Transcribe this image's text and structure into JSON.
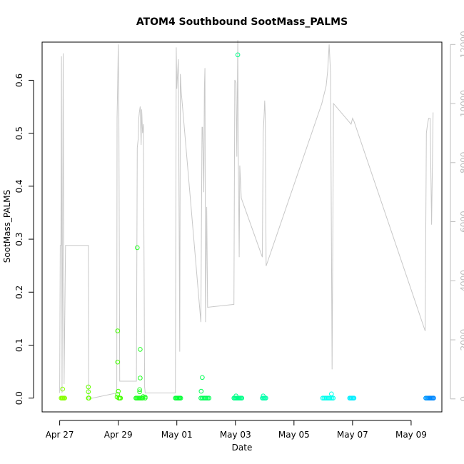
{
  "chart_data": {
    "type": "scatter",
    "title": "ATOM4 Southbound SootMass_PALMS",
    "xlabel": "Date",
    "ylabel": "SootMass_PALMS",
    "x_ticks": [
      "Apr 27",
      "Apr 29",
      "May 01",
      "May 03",
      "May 05",
      "May 07",
      "May 09"
    ],
    "x_tick_values": [
      0,
      2,
      4,
      6,
      8,
      10,
      12
    ],
    "xlim": [
      -0.6,
      13.05
    ],
    "y_ticks": [
      0.0,
      0.1,
      0.2,
      0.3,
      0.4,
      0.5,
      0.6
    ],
    "ylim": [
      -0.026,
      0.672
    ],
    "y2_ticks": [
      0,
      2000,
      4000,
      6000,
      8000,
      10000,
      12000
    ],
    "y2lim": [
      -440,
      12080
    ],
    "colors": {
      "axis": "#000000",
      "altitude": "#c8c8c8",
      "y2_labels": "#bdbdbd"
    },
    "series": [
      {
        "kind": "scatter",
        "points": [
          {
            "x": 0.05,
            "y": 0.0,
            "c": "#88ff00"
          },
          {
            "x": 0.08,
            "y": 0.0,
            "c": "#88ff00"
          },
          {
            "x": 0.1,
            "y": 0.0,
            "c": "#88ff00"
          },
          {
            "x": 0.12,
            "y": 0.0,
            "c": "#88ff00"
          },
          {
            "x": 0.15,
            "y": 0.0,
            "c": "#88ff00"
          },
          {
            "x": 0.17,
            "y": 0.0,
            "c": "#88ff00"
          },
          {
            "x": 0.1,
            "y": 0.017,
            "c": "#88ff00"
          },
          {
            "x": 0.98,
            "y": 0.021,
            "c": "#66ff00"
          },
          {
            "x": 0.98,
            "y": 0.012,
            "c": "#66ff00"
          },
          {
            "x": 0.98,
            "y": 0.0,
            "c": "#66ff00"
          },
          {
            "x": 1.0,
            "y": 0.0,
            "c": "#66ff00"
          },
          {
            "x": 1.98,
            "y": 0.127,
            "c": "#44ff00"
          },
          {
            "x": 1.98,
            "y": 0.068,
            "c": "#44ff00"
          },
          {
            "x": 2.0,
            "y": 0.013,
            "c": "#44ff00"
          },
          {
            "x": 1.98,
            "y": 0.007,
            "c": "#44ff00"
          },
          {
            "x": 1.96,
            "y": 0.002,
            "c": "#44ff00"
          },
          {
            "x": 2.02,
            "y": 0.0,
            "c": "#44ff00"
          },
          {
            "x": 2.05,
            "y": 0.0,
            "c": "#44ff00"
          },
          {
            "x": 2.08,
            "y": 0.0,
            "c": "#44ff00"
          },
          {
            "x": 2.65,
            "y": 0.284,
            "c": "#22ff22"
          },
          {
            "x": 2.75,
            "y": 0.092,
            "c": "#22ff22"
          },
          {
            "x": 2.75,
            "y": 0.038,
            "c": "#22ff22"
          },
          {
            "x": 2.73,
            "y": 0.016,
            "c": "#22ff22"
          },
          {
            "x": 2.73,
            "y": 0.012,
            "c": "#22ff22"
          },
          {
            "x": 2.85,
            "y": 0.003,
            "c": "#22ff22"
          },
          {
            "x": 2.92,
            "y": 0.002,
            "c": "#22ff22"
          },
          {
            "x": 2.6,
            "y": 0.0,
            "c": "#22ff22"
          },
          {
            "x": 2.63,
            "y": 0.0,
            "c": "#22ff22"
          },
          {
            "x": 2.66,
            "y": 0.0,
            "c": "#22ff22"
          },
          {
            "x": 2.69,
            "y": 0.0,
            "c": "#22ff22"
          },
          {
            "x": 2.72,
            "y": 0.0,
            "c": "#22ff22"
          },
          {
            "x": 2.75,
            "y": 0.0,
            "c": "#22ff22"
          },
          {
            "x": 2.78,
            "y": 0.0,
            "c": "#22ff22"
          },
          {
            "x": 2.81,
            "y": 0.0,
            "c": "#22ff22"
          },
          {
            "x": 2.84,
            "y": 0.0,
            "c": "#22ff22"
          },
          {
            "x": 2.92,
            "y": 0.0,
            "c": "#22ff22"
          },
          {
            "x": 3.95,
            "y": 0.0,
            "c": "#00ff33"
          },
          {
            "x": 3.98,
            "y": 0.0,
            "c": "#00ff33"
          },
          {
            "x": 4.01,
            "y": 0.0,
            "c": "#00ff33"
          },
          {
            "x": 4.04,
            "y": 0.0,
            "c": "#00ff33"
          },
          {
            "x": 4.07,
            "y": 0.0,
            "c": "#00ff33"
          },
          {
            "x": 4.1,
            "y": 0.0,
            "c": "#00ff33"
          },
          {
            "x": 4.13,
            "y": 0.0,
            "c": "#00ff33"
          },
          {
            "x": 4.87,
            "y": 0.039,
            "c": "#00ff55"
          },
          {
            "x": 4.83,
            "y": 0.013,
            "c": "#00ff55"
          },
          {
            "x": 4.82,
            "y": 0.0,
            "c": "#00ff55"
          },
          {
            "x": 4.86,
            "y": 0.0,
            "c": "#00ff55"
          },
          {
            "x": 4.9,
            "y": 0.0,
            "c": "#00ff55"
          },
          {
            "x": 4.94,
            "y": 0.0,
            "c": "#00ff55"
          },
          {
            "x": 4.98,
            "y": 0.0,
            "c": "#00ff55"
          },
          {
            "x": 5.02,
            "y": 0.0,
            "c": "#00ff55"
          },
          {
            "x": 5.06,
            "y": 0.0,
            "c": "#00ff55"
          },
          {
            "x": 5.1,
            "y": 0.0,
            "c": "#00ff55"
          },
          {
            "x": 6.08,
            "y": 0.648,
            "c": "#00ff88"
          },
          {
            "x": 6.02,
            "y": 0.004,
            "c": "#00ff88"
          },
          {
            "x": 5.95,
            "y": 0.0,
            "c": "#00ff88"
          },
          {
            "x": 5.98,
            "y": 0.0,
            "c": "#00ff88"
          },
          {
            "x": 6.01,
            "y": 0.0,
            "c": "#00ff88"
          },
          {
            "x": 6.04,
            "y": 0.0,
            "c": "#00ff88"
          },
          {
            "x": 6.07,
            "y": 0.0,
            "c": "#00ff88"
          },
          {
            "x": 6.1,
            "y": 0.0,
            "c": "#00ff88"
          },
          {
            "x": 6.13,
            "y": 0.0,
            "c": "#00ff88"
          },
          {
            "x": 6.16,
            "y": 0.0,
            "c": "#00ff88"
          },
          {
            "x": 6.19,
            "y": 0.0,
            "c": "#00ff88"
          },
          {
            "x": 6.22,
            "y": 0.0,
            "c": "#00ff88"
          },
          {
            "x": 6.95,
            "y": 0.004,
            "c": "#00ffaa"
          },
          {
            "x": 6.92,
            "y": 0.0,
            "c": "#00ffaa"
          },
          {
            "x": 6.95,
            "y": 0.0,
            "c": "#00ffaa"
          },
          {
            "x": 6.98,
            "y": 0.0,
            "c": "#00ffaa"
          },
          {
            "x": 7.01,
            "y": 0.0,
            "c": "#00ffaa"
          },
          {
            "x": 7.04,
            "y": 0.0,
            "c": "#00ffaa"
          },
          {
            "x": 9.28,
            "y": 0.008,
            "c": "#00ffee"
          },
          {
            "x": 8.98,
            "y": 0.0,
            "c": "#00ffee"
          },
          {
            "x": 9.02,
            "y": 0.0,
            "c": "#00ffee"
          },
          {
            "x": 9.06,
            "y": 0.0,
            "c": "#00ffee"
          },
          {
            "x": 9.1,
            "y": 0.0,
            "c": "#00ffee"
          },
          {
            "x": 9.14,
            "y": 0.0,
            "c": "#00ffee"
          },
          {
            "x": 9.18,
            "y": 0.0,
            "c": "#00ffee"
          },
          {
            "x": 9.22,
            "y": 0.0,
            "c": "#00ffee"
          },
          {
            "x": 9.26,
            "y": 0.0,
            "c": "#00ffee"
          },
          {
            "x": 9.3,
            "y": 0.0,
            "c": "#00ffee"
          },
          {
            "x": 9.34,
            "y": 0.0,
            "c": "#00ffee"
          },
          {
            "x": 9.9,
            "y": 0.0,
            "c": "#00eeff"
          },
          {
            "x": 9.93,
            "y": 0.0,
            "c": "#00eeff"
          },
          {
            "x": 9.96,
            "y": 0.0,
            "c": "#00eeff"
          },
          {
            "x": 9.99,
            "y": 0.0,
            "c": "#00eeff"
          },
          {
            "x": 10.02,
            "y": 0.0,
            "c": "#00eeff"
          },
          {
            "x": 10.05,
            "y": 0.0,
            "c": "#00eeff"
          },
          {
            "x": 12.5,
            "y": 0.0,
            "c": "#0099ff"
          },
          {
            "x": 12.53,
            "y": 0.0,
            "c": "#0099ff"
          },
          {
            "x": 12.56,
            "y": 0.0,
            "c": "#0099ff"
          },
          {
            "x": 12.59,
            "y": 0.0,
            "c": "#0099ff"
          },
          {
            "x": 12.62,
            "y": 0.0,
            "c": "#0088ff"
          },
          {
            "x": 12.65,
            "y": 0.0,
            "c": "#0088ff"
          },
          {
            "x": 12.68,
            "y": 0.0,
            "c": "#0088ff"
          },
          {
            "x": 12.71,
            "y": 0.0,
            "c": "#0088ff"
          },
          {
            "x": 12.74,
            "y": 0.0,
            "c": "#0088ff"
          },
          {
            "x": 12.77,
            "y": 0.0,
            "c": "#0088ff"
          }
        ]
      },
      {
        "kind": "altitude_line",
        "axis": "y2",
        "points": [
          [
            0.0,
            200
          ],
          [
            0.02,
            5200
          ],
          [
            0.04,
            5200
          ],
          [
            0.06,
            11600
          ],
          [
            0.08,
            200
          ],
          [
            0.1,
            5200
          ],
          [
            0.12,
            11700
          ],
          [
            0.15,
            500
          ],
          [
            0.2,
            5200
          ],
          [
            0.25,
            5200
          ],
          [
            0.98,
            5200
          ],
          [
            0.99,
            200
          ],
          [
            1.0,
            0
          ],
          [
            1.95,
            200
          ],
          [
            1.96,
            9500
          ],
          [
            1.98,
            10600
          ],
          [
            2.0,
            12000
          ],
          [
            2.02,
            9800
          ],
          [
            2.05,
            600
          ],
          [
            2.1,
            600
          ],
          [
            2.62,
            600
          ],
          [
            2.65,
            8500
          ],
          [
            2.68,
            8800
          ],
          [
            2.7,
            9500
          ],
          [
            2.72,
            9700
          ],
          [
            2.75,
            9900
          ],
          [
            2.78,
            8600
          ],
          [
            2.8,
            9800
          ],
          [
            2.83,
            9000
          ],
          [
            2.86,
            9300
          ],
          [
            2.9,
            400
          ],
          [
            2.92,
            200
          ],
          [
            3.95,
            200
          ],
          [
            3.98,
            11900
          ],
          [
            4.0,
            10500
          ],
          [
            4.05,
            11500
          ],
          [
            4.1,
            1600
          ],
          [
            4.12,
            11000
          ],
          [
            4.15,
            10400
          ],
          [
            4.82,
            2600
          ],
          [
            4.86,
            9200
          ],
          [
            4.88,
            9200
          ],
          [
            4.92,
            7000
          ],
          [
            4.94,
            10500
          ],
          [
            4.96,
            11200
          ],
          [
            4.98,
            2600
          ],
          [
            5.02,
            6500
          ],
          [
            5.05,
            3100
          ],
          [
            5.95,
            3200
          ],
          [
            5.98,
            10800
          ],
          [
            6.02,
            10700
          ],
          [
            6.05,
            8200
          ],
          [
            6.08,
            12150
          ],
          [
            6.1,
            8000
          ],
          [
            6.13,
            4800
          ],
          [
            6.15,
            7900
          ],
          [
            6.2,
            6800
          ],
          [
            6.92,
            4800
          ],
          [
            6.95,
            9000
          ],
          [
            6.98,
            9600
          ],
          [
            7.0,
            10100
          ],
          [
            7.02,
            9600
          ],
          [
            7.05,
            4500
          ],
          [
            8.95,
            10000
          ],
          [
            9.0,
            10200
          ],
          [
            9.05,
            10400
          ],
          [
            9.1,
            10600
          ],
          [
            9.15,
            11100
          ],
          [
            9.2,
            12000
          ],
          [
            9.25,
            11000
          ],
          [
            9.3,
            1000
          ],
          [
            9.35,
            10000
          ],
          [
            9.95,
            9300
          ],
          [
            10.0,
            9500
          ],
          [
            10.05,
            9400
          ],
          [
            12.48,
            2300
          ],
          [
            12.52,
            9000
          ],
          [
            12.56,
            9300
          ],
          [
            12.6,
            9500
          ],
          [
            12.65,
            9500
          ],
          [
            12.7,
            5900
          ],
          [
            12.75,
            9700
          ]
        ]
      }
    ]
  }
}
